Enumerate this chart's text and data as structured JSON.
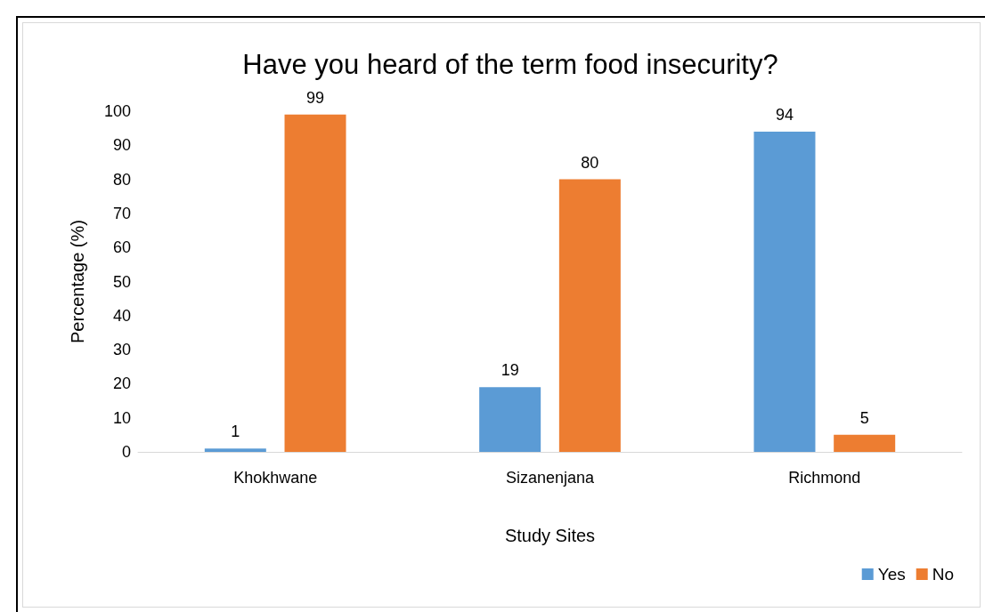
{
  "chart_data": {
    "type": "bar",
    "title": "Have you heard of the term food insecurity?",
    "xlabel": "Study Sites",
    "ylabel": "Percentage (%)",
    "categories": [
      "Khokhwane",
      "Sizanenjana",
      "Richmond"
    ],
    "series": [
      {
        "name": "Yes",
        "color": "#5b9bd5",
        "values": [
          1,
          19,
          94
        ]
      },
      {
        "name": "No",
        "color": "#ed7d31",
        "values": [
          99,
          80,
          5
        ]
      }
    ],
    "ylim": [
      0,
      100
    ],
    "yticks": [
      0,
      10,
      20,
      30,
      40,
      50,
      60,
      70,
      80,
      90,
      100
    ],
    "grid": false,
    "legend": "bottom right",
    "data_labels": true
  }
}
